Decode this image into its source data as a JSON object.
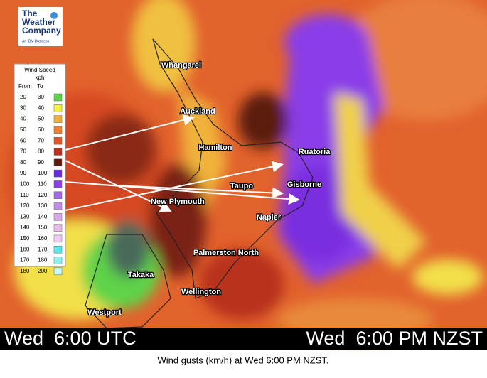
{
  "logo": {
    "lines": [
      "The",
      "Weather",
      "Company"
    ],
    "tagline": "An IBM Business"
  },
  "legend": {
    "title": "Wind Speed",
    "unit": "kph",
    "headers": [
      "From",
      "To"
    ],
    "rows": [
      {
        "from": 20,
        "to": 30,
        "color": "#5fd34a"
      },
      {
        "from": 30,
        "to": 40,
        "color": "#f2ee45"
      },
      {
        "from": 40,
        "to": 50,
        "color": "#f0b23a"
      },
      {
        "from": 50,
        "to": 60,
        "color": "#ec7f30"
      },
      {
        "from": 60,
        "to": 70,
        "color": "#e0542a"
      },
      {
        "from": 70,
        "to": 80,
        "color": "#b8321e"
      },
      {
        "from": 80,
        "to": 90,
        "color": "#5c1a10"
      },
      {
        "from": 90,
        "to": 100,
        "color": "#6a2be0"
      },
      {
        "from": 100,
        "to": 110,
        "color": "#8a3ee8"
      },
      {
        "from": 110,
        "to": 120,
        "color": "#a46ae6"
      },
      {
        "from": 120,
        "to": 130,
        "color": "#c08ee8"
      },
      {
        "from": 130,
        "to": 140,
        "color": "#d8a8e8"
      },
      {
        "from": 140,
        "to": 150,
        "color": "#eab8ea"
      },
      {
        "from": 150,
        "to": 160,
        "color": "#f0c8f0"
      },
      {
        "from": 160,
        "to": 170,
        "color": "#5ee8e8"
      },
      {
        "from": 170,
        "to": 180,
        "color": "#90f0f0"
      },
      {
        "from": 180,
        "to": 200,
        "color": "#c8f8f8"
      }
    ]
  },
  "places": [
    "Whangarei",
    "Auckland",
    "Hamilton",
    "Ruatoria",
    "Taupo",
    "Gisborne",
    "New Plymouth",
    "Napier",
    "Palmerston North",
    "Takaka",
    "Wellington",
    "Westport"
  ],
  "time_bar": {
    "left": "Wed  6:00 UTC",
    "right": "Wed  6:00 PM NZST"
  },
  "caption": "Wind gusts (km/h) at Wed 6:00 PM NZST."
}
